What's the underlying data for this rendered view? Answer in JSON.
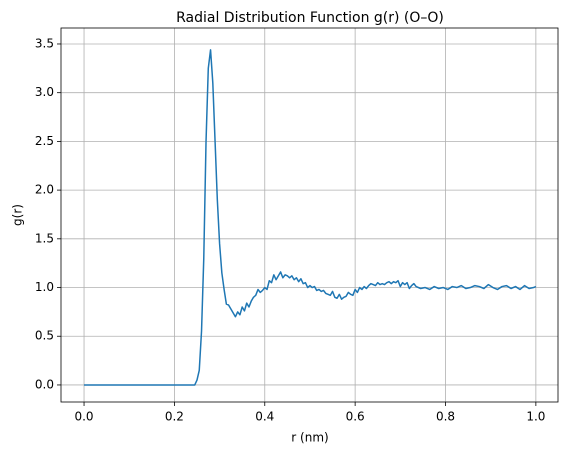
{
  "chart_data": {
    "type": "line",
    "title": "Radial Distribution Function g(r) (O–O)",
    "xlabel": "r (nm)",
    "ylabel": "g(r)",
    "color": "#1f77b4",
    "grid": true,
    "xlim": [
      -0.051,
      1.049
    ],
    "ylim": [
      -0.175,
      3.664
    ],
    "xticks": [
      {
        "value": 0,
        "label": "0.0"
      },
      {
        "value": 0.2,
        "label": "0.2"
      },
      {
        "value": 0.4,
        "label": "0.4"
      },
      {
        "value": 0.6,
        "label": "0.6"
      },
      {
        "value": 0.8,
        "label": "0.8"
      },
      {
        "value": 1,
        "label": "1.0"
      }
    ],
    "yticks": [
      {
        "value": 0,
        "label": "0.0"
      },
      0.5,
      {
        "value": 1,
        "label": "1.0"
      },
      1.5,
      {
        "value": 2,
        "label": "2.0"
      },
      2.5,
      {
        "value": 3,
        "label": "3.0"
      },
      3.5
    ],
    "x": [
      0,
      0.245,
      0.25,
      0.255,
      0.26,
      0.265,
      0.27,
      0.275,
      0.28,
      0.285,
      0.29,
      0.295,
      0.3,
      0.305,
      0.31,
      0.315,
      0.32,
      0.325,
      0.33,
      0.335,
      0.34,
      0.345,
      0.35,
      0.355,
      0.36,
      0.365,
      0.37,
      0.375,
      0.38,
      0.385,
      0.39,
      0.395,
      0.4,
      0.405,
      0.41,
      0.415,
      0.42,
      0.425,
      0.43,
      0.435,
      0.44,
      0.445,
      0.45,
      0.455,
      0.46,
      0.465,
      0.47,
      0.475,
      0.48,
      0.485,
      0.49,
      0.495,
      0.5,
      0.505,
      0.51,
      0.515,
      0.52,
      0.525,
      0.53,
      0.535,
      0.54,
      0.545,
      0.55,
      0.555,
      0.56,
      0.565,
      0.57,
      0.575,
      0.58,
      0.585,
      0.59,
      0.595,
      0.6,
      0.605,
      0.61,
      0.615,
      0.62,
      0.625,
      0.63,
      0.635,
      0.64,
      0.645,
      0.65,
      0.655,
      0.66,
      0.665,
      0.67,
      0.675,
      0.68,
      0.685,
      0.69,
      0.695,
      0.7,
      0.705,
      0.71,
      0.715,
      0.72,
      0.725,
      0.73,
      0.735,
      0.745,
      0.755,
      0.765,
      0.775,
      0.785,
      0.795,
      0.805,
      0.815,
      0.825,
      0.835,
      0.845,
      0.855,
      0.865,
      0.875,
      0.885,
      0.895,
      0.905,
      0.915,
      0.925,
      0.935,
      0.945,
      0.955,
      0.965,
      0.975,
      0.985,
      0.995,
      1
    ],
    "values": [
      0,
      0,
      0.05,
      0.15,
      0.55,
      1.3,
      2.5,
      3.25,
      3.44,
      3.1,
      2.5,
      1.9,
      1.45,
      1.15,
      0.98,
      0.83,
      0.82,
      0.78,
      0.74,
      0.7,
      0.75,
      0.72,
      0.8,
      0.76,
      0.84,
      0.8,
      0.86,
      0.9,
      0.92,
      0.98,
      0.95,
      0.97,
      1.0,
      0.98,
      1.07,
      1.05,
      1.13,
      1.08,
      1.12,
      1.16,
      1.1,
      1.13,
      1.12,
      1.1,
      1.12,
      1.08,
      1.1,
      1.06,
      1.09,
      1.04,
      1.05,
      1.0,
      1.02,
      1.0,
      1.01,
      0.97,
      0.98,
      0.96,
      0.97,
      0.94,
      0.93,
      0.92,
      0.96,
      0.9,
      0.89,
      0.93,
      0.88,
      0.9,
      0.91,
      0.95,
      0.93,
      0.92,
      0.98,
      0.95,
      1.0,
      0.98,
      1.01,
      0.99,
      1.02,
      1.04,
      1.03,
      1.02,
      1.05,
      1.03,
      1.04,
      1.03,
      1.05,
      1.06,
      1.04,
      1.06,
      1.05,
      1.07,
      1.01,
      1.05,
      1.03,
      1.05,
      0.99,
      1.02,
      1.04,
      1.01,
      0.99,
      1.0,
      0.98,
      1.01,
      0.99,
      1.0,
      0.98,
      1.01,
      1.0,
      1.02,
      0.99,
      1.0,
      1.02,
      1.01,
      0.99,
      1.03,
      1.0,
      0.98,
      1.01,
      1.02,
      0.99,
      1.01,
      0.98,
      1.02,
      0.99,
      1.0,
      1.01
    ]
  }
}
